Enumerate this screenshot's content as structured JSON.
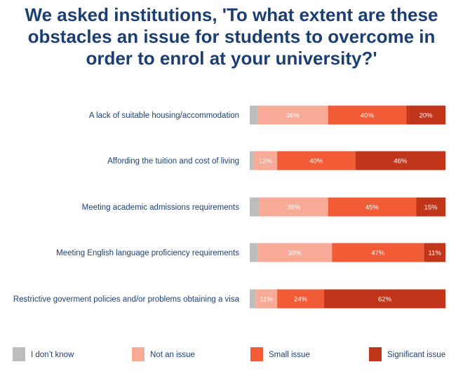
{
  "title_lines": [
    "We asked institutions, 'To what extent are these",
    "obstacles an issue for students to overcome in",
    "order to enrol at your university?'"
  ],
  "colors": {
    "dont_know": "#bdbdbd",
    "not_an_issue": "#f7ab96",
    "small_issue": "#f15c37",
    "significant_issue": "#c1361b"
  },
  "chart_data": {
    "type": "bar",
    "orientation": "horizontal",
    "stacked": true,
    "normalized_percent": true,
    "categories": [
      "A lack of suitable housing/accommodation",
      "Affording the tuition and cost of living",
      "Meeting academic admissions requirements",
      "Meeting English language proficiency requirements",
      "Restrictive goverment policies and/or problems obtaining a visa"
    ],
    "series": [
      {
        "name": "I don't know",
        "color_key": "dont_know",
        "values": [
          4,
          2,
          5,
          4,
          3
        ],
        "labels": [
          "",
          "",
          "",
          "",
          ""
        ]
      },
      {
        "name": "Not an issue",
        "color_key": "not_an_issue",
        "values": [
          36,
          12,
          35,
          38,
          11
        ],
        "labels": [
          "36%",
          "12%",
          "35%",
          "38%",
          "11%"
        ]
      },
      {
        "name": "Small issue",
        "color_key": "small_issue",
        "values": [
          40,
          40,
          45,
          47,
          24
        ],
        "labels": [
          "40%",
          "40%",
          "45%",
          "47%",
          "24%"
        ]
      },
      {
        "name": "Significant issue",
        "color_key": "significant_issue",
        "values": [
          20,
          46,
          15,
          11,
          62
        ],
        "labels": [
          "20%",
          "46%",
          "15%",
          "11%",
          "62%"
        ]
      }
    ],
    "legend": {
      "position": "bottom",
      "labels": [
        "I don’t know",
        "Not an issue",
        "Small issue",
        "Significant issue"
      ]
    }
  }
}
